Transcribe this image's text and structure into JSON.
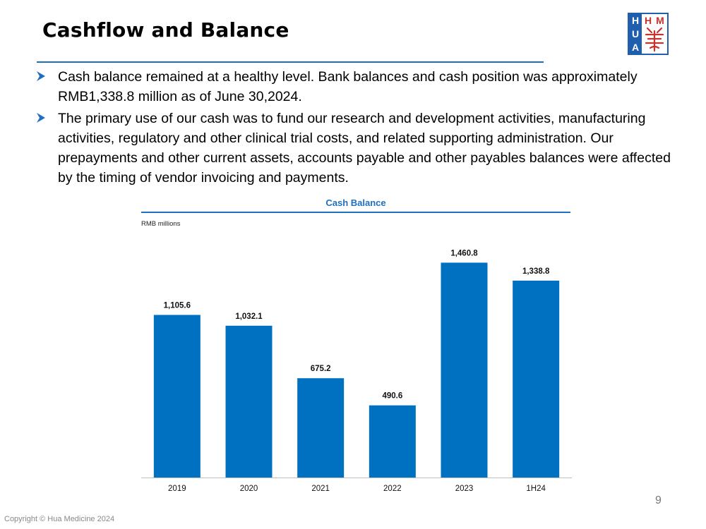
{
  "slide": {
    "title": "Cashflow and Balance",
    "page_number": "9",
    "copyright": "Copyright © Hua Medicine 2024",
    "logo": {
      "text_vertical": [
        "H",
        "U",
        "A"
      ],
      "text_top": "HM",
      "alt": "Hua Medicine logo"
    },
    "accent_color": "#1f6fbf",
    "bar_color": "#0070c0"
  },
  "bullets": [
    "Cash balance remained at a healthy level. Bank balances and cash position was approximately RMB1,338.8 million as of June 30,2024.",
    "The primary use of our cash was to fund our research and development activities, manufacturing activities, regulatory and other clinical trial costs, and related supporting administration. Our prepayments and other current assets, accounts payable and other payables balances were affected by the timing of vendor invoicing and payments."
  ],
  "chart_data": {
    "type": "bar",
    "title": "Cash Balance",
    "unit_label": "RMB millions",
    "categories": [
      "2019",
      "2020",
      "2021",
      "2022",
      "2023",
      "1H24"
    ],
    "values": [
      1105.6,
      1032.1,
      675.2,
      490.6,
      1460.8,
      1338.8
    ],
    "value_labels": [
      "1,105.6",
      "1,032.1",
      "675.2",
      "490.6",
      "1,460.8",
      "1,338.8"
    ],
    "xlabel": "",
    "ylabel": "",
    "ylim": [
      0,
      1600
    ],
    "grid": false,
    "legend": "none"
  }
}
